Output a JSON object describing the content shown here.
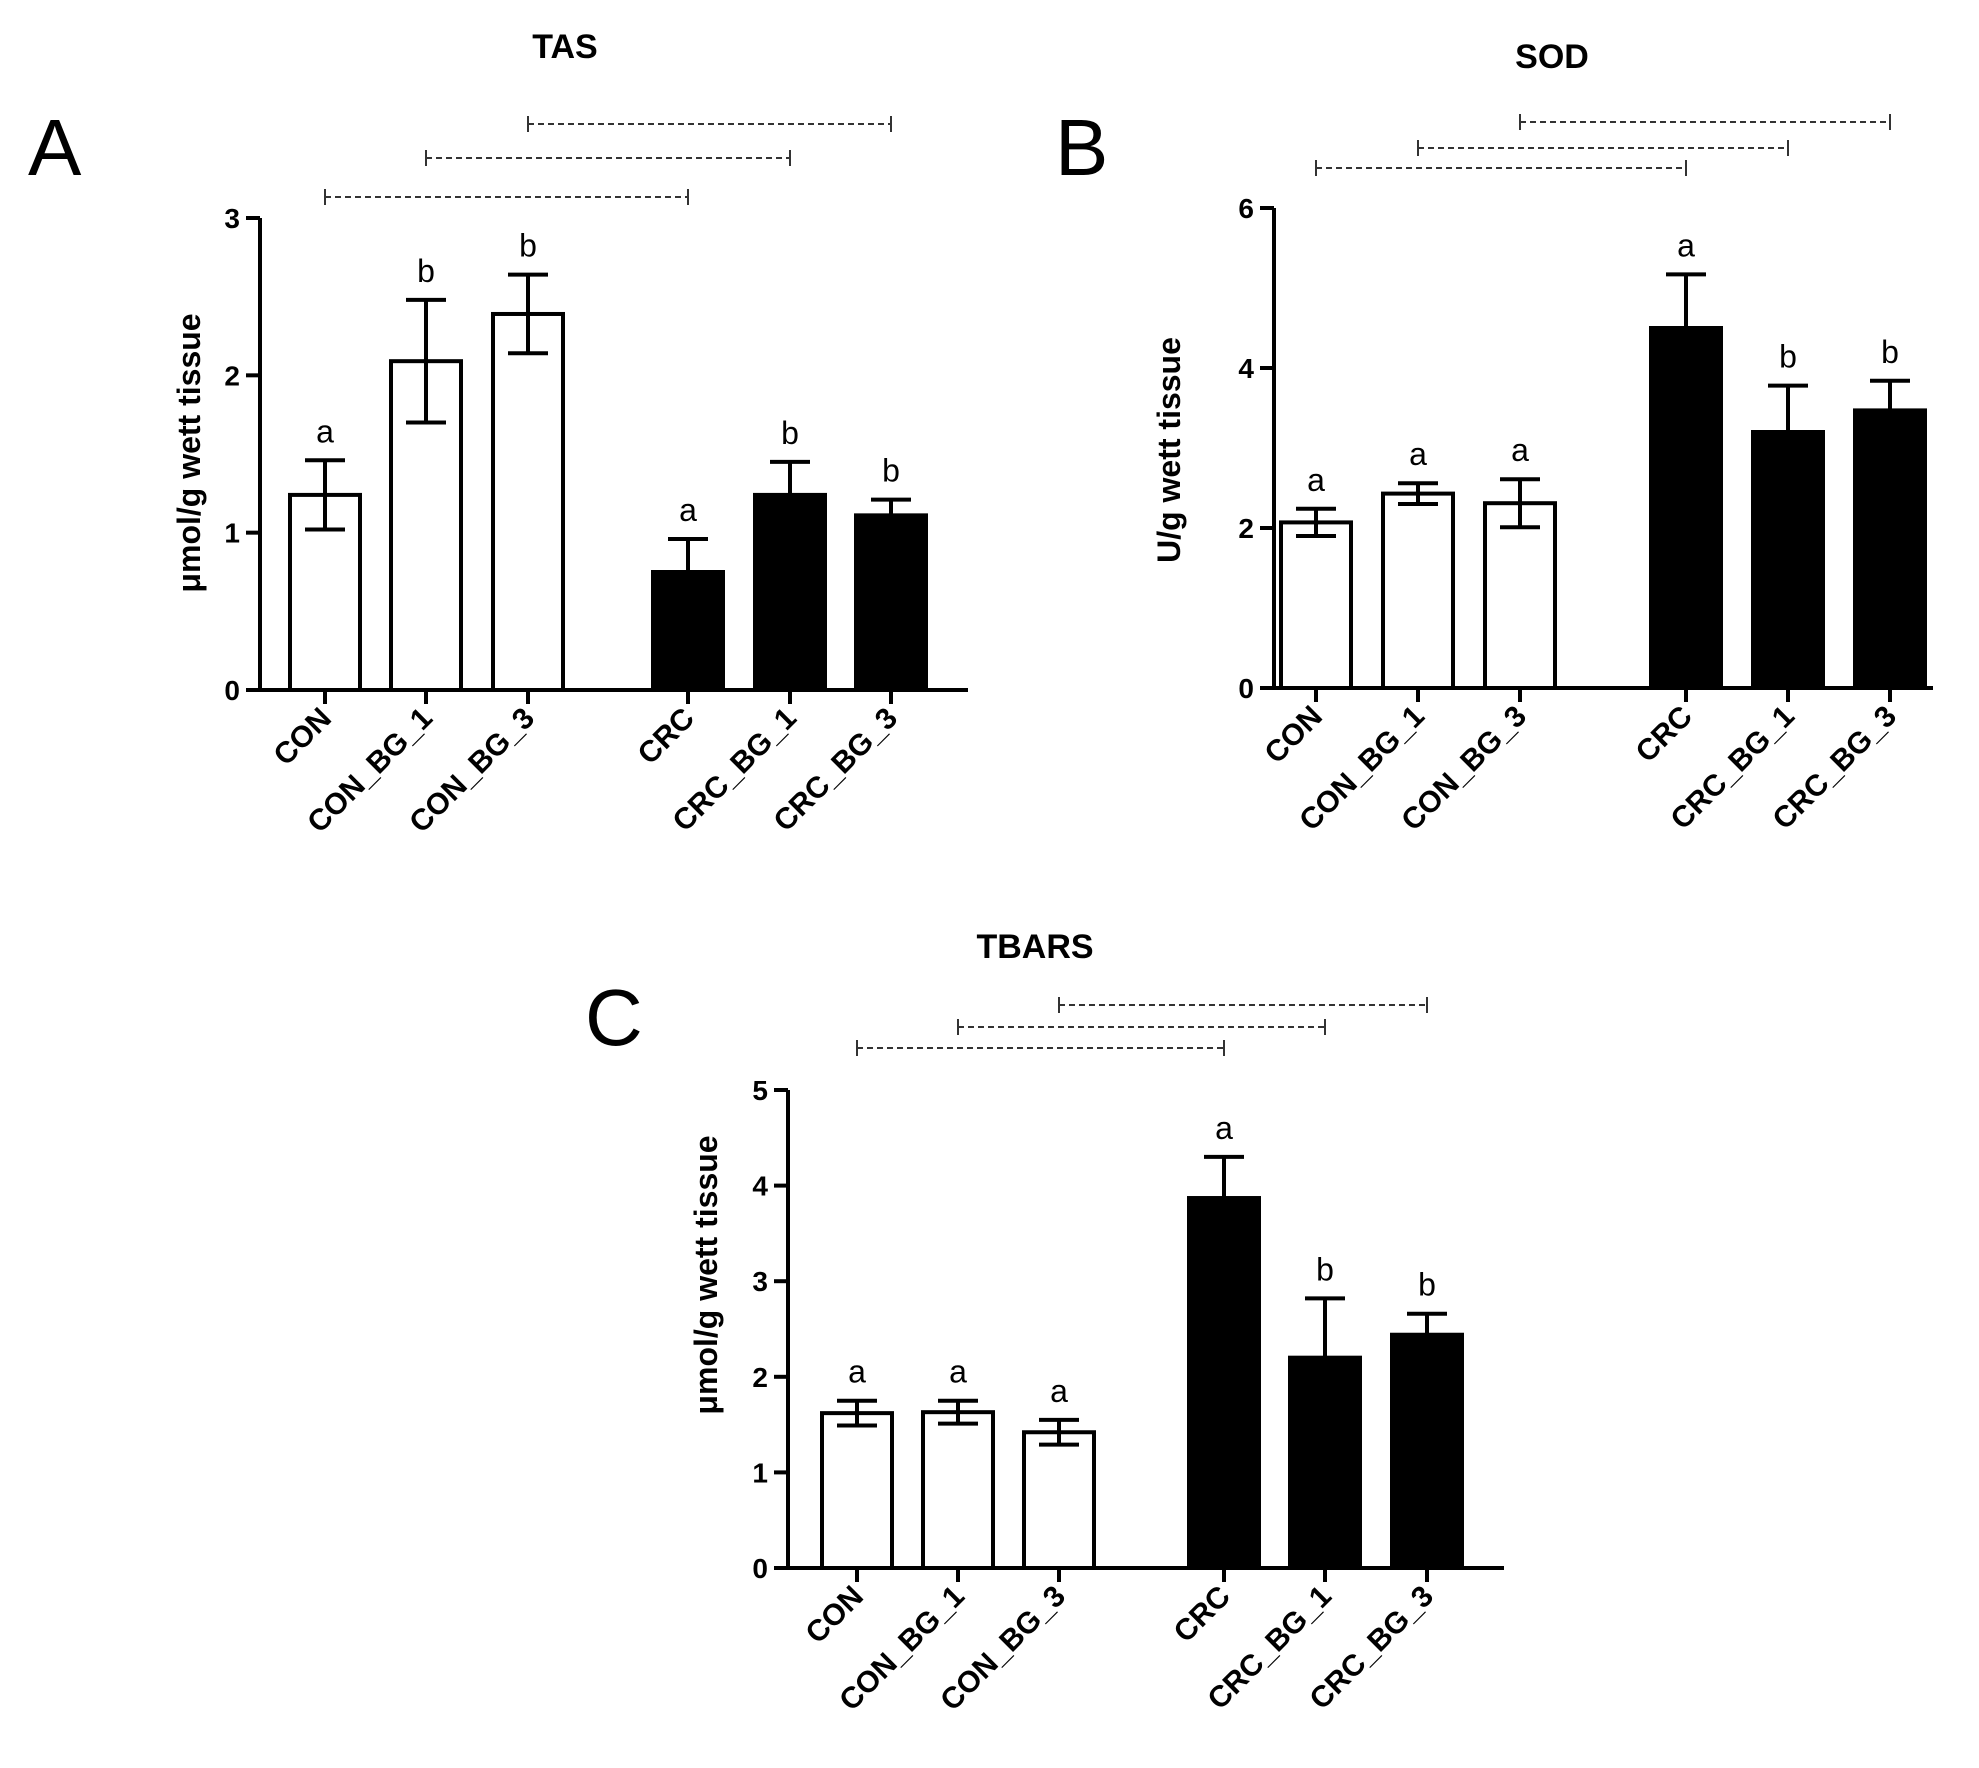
{
  "figure": {
    "background": "#ffffff",
    "control_fill": "#ffffff",
    "crc_fill": "#000000"
  },
  "chart_data": [
    {
      "panel": "A",
      "type": "bar",
      "title": "TAS",
      "xlabel": "",
      "ylabel": "μmol/g wett tissue",
      "ylim": [
        0,
        3
      ],
      "yticks": [
        0,
        1,
        2,
        3
      ],
      "categories": [
        "CON",
        "CON_BG_1",
        "CON_BG_3",
        "CRC",
        "CRC_BG_1",
        "CRC_BG_3"
      ],
      "values": [
        1.24,
        2.09,
        2.39,
        0.75,
        1.24,
        1.11
      ],
      "errors": [
        0.22,
        0.39,
        0.25,
        0.21,
        0.21,
        0.1
      ],
      "letters": [
        "a",
        "b",
        "b",
        "a",
        "b",
        "b"
      ],
      "comparisons": [
        [
          0,
          3
        ],
        [
          1,
          4
        ],
        [
          2,
          5
        ]
      ]
    },
    {
      "panel": "B",
      "type": "bar",
      "title": "SOD",
      "xlabel": "",
      "ylabel": "U/g wett tissue",
      "ylim": [
        0,
        6
      ],
      "yticks": [
        0,
        2,
        4,
        6
      ],
      "categories": [
        "CON",
        "CON_BG_1",
        "CON_BG_3",
        "CRC",
        "CRC_BG_1",
        "CRC_BG_3"
      ],
      "values": [
        2.07,
        2.43,
        2.31,
        4.5,
        3.2,
        3.47
      ],
      "errors": [
        0.17,
        0.13,
        0.3,
        0.67,
        0.58,
        0.37
      ],
      "letters": [
        "a",
        "a",
        "a",
        "a",
        "b",
        "b"
      ],
      "comparisons": [
        [
          0,
          3
        ],
        [
          1,
          4
        ],
        [
          2,
          5
        ]
      ]
    },
    {
      "panel": "C",
      "type": "bar",
      "title": "TBARS",
      "xlabel": "",
      "ylabel": "μmol/g wett tissue",
      "ylim": [
        0,
        5
      ],
      "yticks": [
        0,
        1,
        2,
        3,
        4,
        5
      ],
      "categories": [
        "CON",
        "CON_BG_1",
        "CON_BG_3",
        "CRC",
        "CRC_BG_1",
        "CRC_BG_3"
      ],
      "values": [
        1.62,
        1.63,
        1.42,
        3.87,
        2.2,
        2.44
      ],
      "errors": [
        0.13,
        0.12,
        0.13,
        0.43,
        0.62,
        0.22
      ],
      "letters": [
        "a",
        "a",
        "a",
        "a",
        "b",
        "b"
      ],
      "comparisons": [
        [
          0,
          3
        ],
        [
          1,
          4
        ],
        [
          2,
          5
        ]
      ]
    }
  ]
}
